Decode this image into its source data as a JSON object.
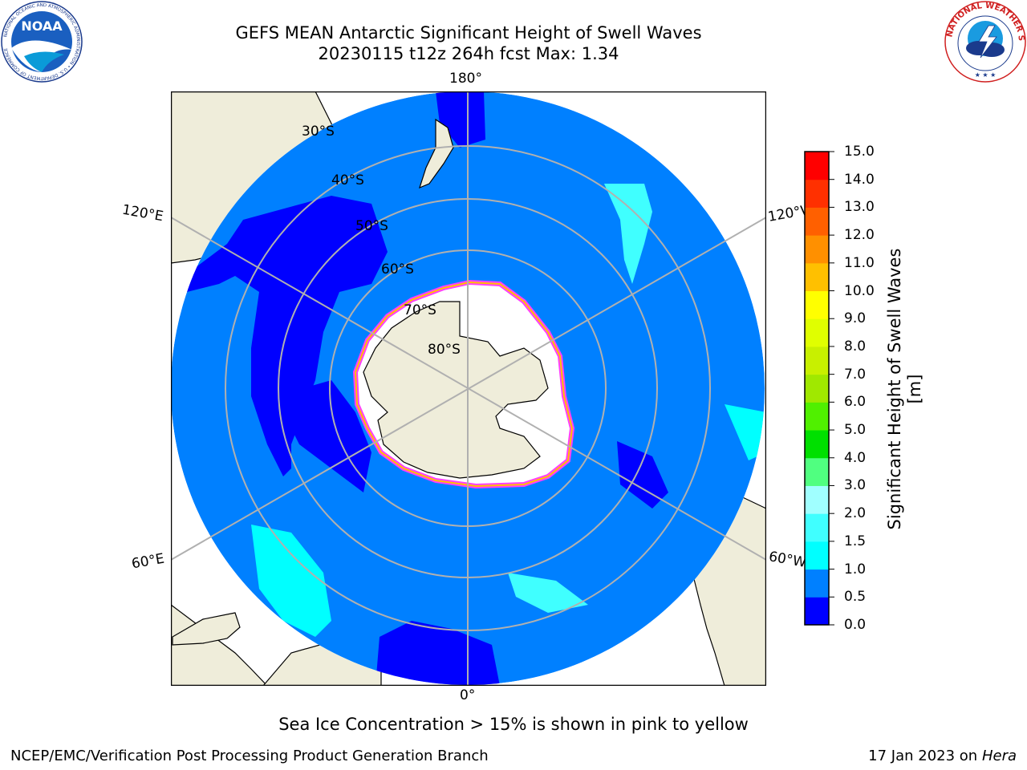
{
  "title": {
    "line1": "GEFS MEAN Antarctic Significant Height of Swell Waves",
    "line2": "20230115 t12z 264h fcst   Max: 1.34"
  },
  "map": {
    "projection": "south-polar-stereographic",
    "latitude_labels": [
      "30°S",
      "40°S",
      "50°S",
      "60°S",
      "70°S",
      "80°S"
    ],
    "longitude_labels": {
      "top": "180°",
      "bottom": "0°",
      "upper_left": "120°E",
      "upper_right": "120°W",
      "lower_left": "60°E",
      "lower_right": "60°W"
    },
    "colors": {
      "land": "#efedda",
      "ocean_default": "#0080ff",
      "ocean_low": "#0000ff",
      "ocean_mid": "#00ffff",
      "ice_edge": "#ff40ff",
      "grid": "#b0b0b0"
    }
  },
  "colorbar": {
    "title": "Significant Height of Swell Waves [m]",
    "ticks": [
      "0.0",
      "0.5",
      "1.0",
      "1.5",
      "2.0",
      "3.0",
      "4.0",
      "5.0",
      "6.0",
      "7.0",
      "8.0",
      "9.0",
      "10.0",
      "11.0",
      "12.0",
      "13.0",
      "14.0",
      "15.0"
    ],
    "colors": [
      "#0000ff",
      "#0080ff",
      "#00ffff",
      "#40ffff",
      "#a0ffff",
      "#50ff80",
      "#00e000",
      "#50f000",
      "#a0e800",
      "#c8f000",
      "#e0ff00",
      "#ffff00",
      "#ffc000",
      "#ff9000",
      "#ff6000",
      "#ff3000",
      "#ff0000"
    ]
  },
  "logos": {
    "noaa": "NOAA",
    "noaa_ring": "NATIONAL OCEANIC AND ATMOSPHERIC ADMINISTRATION • U.S. DEPARTMENT OF COMMERCE",
    "nws_ring": "NATIONAL WEATHER SERVICE"
  },
  "notes": {
    "ice": "Sea Ice Concentration > 15% is shown in pink to yellow"
  },
  "footer": {
    "left": "NCEP/EMC/Verification Post Processing Product Generation Branch",
    "right_prefix": "17 Jan 2023 on ",
    "right_host": "Hera"
  }
}
